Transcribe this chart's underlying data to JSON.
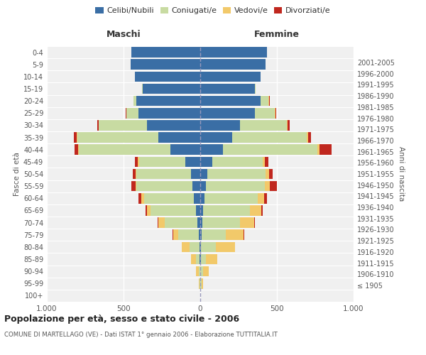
{
  "age_groups": [
    "100+",
    "95-99",
    "90-94",
    "85-89",
    "80-84",
    "75-79",
    "70-74",
    "65-69",
    "60-64",
    "55-59",
    "50-54",
    "45-49",
    "40-44",
    "35-39",
    "30-34",
    "25-29",
    "20-24",
    "15-19",
    "10-14",
    "5-9",
    "0-4"
  ],
  "birth_years": [
    "≤ 1905",
    "1906-1910",
    "1911-1915",
    "1916-1920",
    "1921-1925",
    "1926-1930",
    "1931-1935",
    "1936-1940",
    "1941-1945",
    "1946-1950",
    "1951-1955",
    "1956-1960",
    "1961-1965",
    "1966-1970",
    "1971-1975",
    "1976-1980",
    "1981-1985",
    "1986-1990",
    "1991-1995",
    "1996-2000",
    "2001-2005"
  ],
  "colors": {
    "celibe": "#3a6ea5",
    "coniugato": "#c8dba2",
    "vedovo": "#f2c96a",
    "divorziato": "#c0271e"
  },
  "maschi": {
    "celibe": [
      0,
      1,
      1,
      3,
      5,
      10,
      18,
      28,
      42,
      52,
      62,
      95,
      195,
      275,
      345,
      405,
      415,
      375,
      425,
      455,
      450
    ],
    "coniugato": [
      0,
      3,
      10,
      25,
      65,
      135,
      215,
      295,
      325,
      365,
      355,
      305,
      595,
      525,
      315,
      75,
      18,
      4,
      0,
      0,
      0
    ],
    "vedovo": [
      0,
      5,
      18,
      32,
      52,
      32,
      38,
      22,
      16,
      6,
      6,
      6,
      6,
      5,
      3,
      1,
      0,
      0,
      0,
      0,
      0
    ],
    "divorziato": [
      0,
      0,
      0,
      0,
      0,
      5,
      5,
      10,
      18,
      28,
      18,
      18,
      22,
      18,
      8,
      4,
      4,
      0,
      0,
      0,
      0
    ]
  },
  "femmine": {
    "nubile": [
      0,
      1,
      1,
      3,
      5,
      10,
      15,
      20,
      30,
      38,
      48,
      78,
      148,
      208,
      258,
      358,
      395,
      355,
      395,
      425,
      435
    ],
    "coniugata": [
      0,
      6,
      18,
      35,
      95,
      158,
      245,
      305,
      345,
      382,
      378,
      328,
      618,
      488,
      308,
      128,
      48,
      8,
      0,
      0,
      0
    ],
    "vedova": [
      0,
      12,
      38,
      72,
      125,
      115,
      92,
      72,
      42,
      32,
      22,
      16,
      11,
      6,
      5,
      5,
      5,
      0,
      0,
      0,
      0
    ],
    "divorziata": [
      0,
      0,
      0,
      0,
      0,
      5,
      5,
      10,
      18,
      48,
      22,
      22,
      78,
      22,
      12,
      4,
      4,
      0,
      0,
      0,
      0
    ]
  },
  "xlim": 1000,
  "title": "Popolazione per età, sesso e stato civile - 2006",
  "subtitle": "COMUNE DI MARTELLAGO (VE) - Dati ISTAT 1° gennaio 2006 - Elaborazione TUTTITALIA.IT",
  "xlabel_left": "Maschi",
  "xlabel_right": "Femmine",
  "ylabel_left": "Fasce di età",
  "ylabel_right": "Anni di nascita",
  "xtick_labels": [
    "1.000",
    "500",
    "0",
    "500",
    "1.000"
  ],
  "bg_color": "#f0f0f0"
}
